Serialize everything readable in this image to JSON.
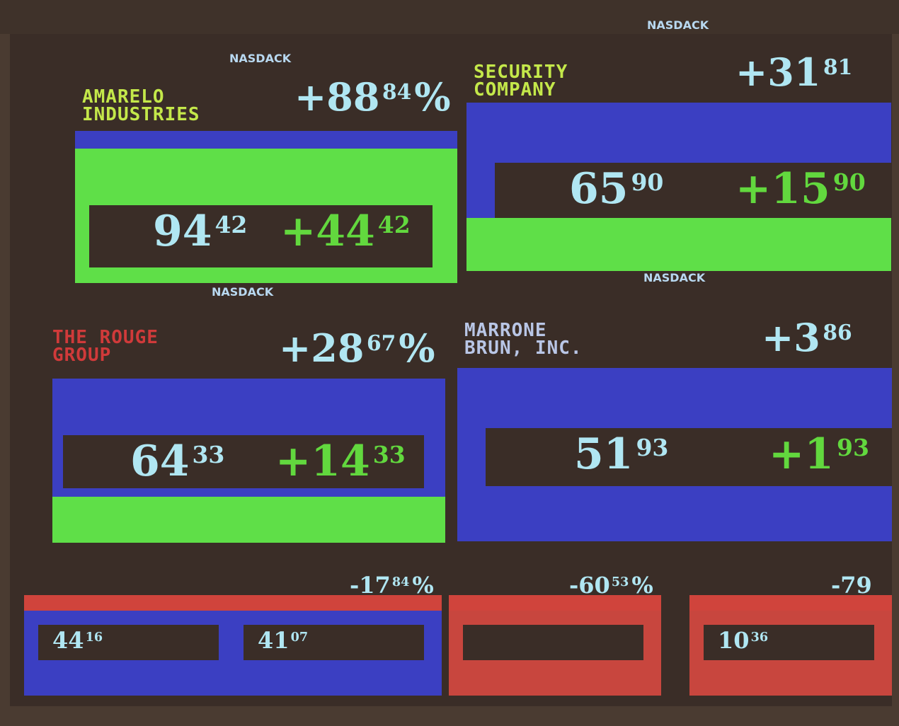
{
  "exchange_labels": [
    "NASDACK",
    "NASDACK",
    "NASDACK",
    "NASDACK"
  ],
  "panels": [
    {
      "name": "AMARELO\nINDUSTRIES",
      "change_pct": "+88",
      "change_pct_cents": "84",
      "pct_sign": "%",
      "price": "94",
      "price_cents": "42",
      "change": "+44",
      "change_cents": "42"
    },
    {
      "name": "SECURITY\nCOMPANY",
      "change_pct": "+31",
      "change_pct_cents": "81",
      "price": "65",
      "price_cents": "90",
      "change": "+15",
      "change_cents": "90"
    },
    {
      "name": "THE ROUGE\nGROUP",
      "change_pct": "+28",
      "change_pct_cents": "67",
      "pct_sign": "%",
      "price": "64",
      "price_cents": "33",
      "change": "+14",
      "change_cents": "33"
    },
    {
      "name": "MARRONE\nBRUN, INC.",
      "change_pct": "+3",
      "change_pct_cents": "86",
      "price": "51",
      "price_cents": "93",
      "change": "+1",
      "change_cents": "93"
    }
  ],
  "small_panels": [
    {
      "price": "44",
      "price_cents": "16"
    },
    {
      "change_pct": "-17",
      "change_pct_cents": "84",
      "pct_sign": "%",
      "price": "41",
      "price_cents": "07"
    },
    {
      "change_pct": "-60",
      "change_pct_cents": "53",
      "pct_sign": "%"
    },
    {
      "change_pct": "-79",
      "price": "10",
      "price_cents": "36"
    }
  ]
}
